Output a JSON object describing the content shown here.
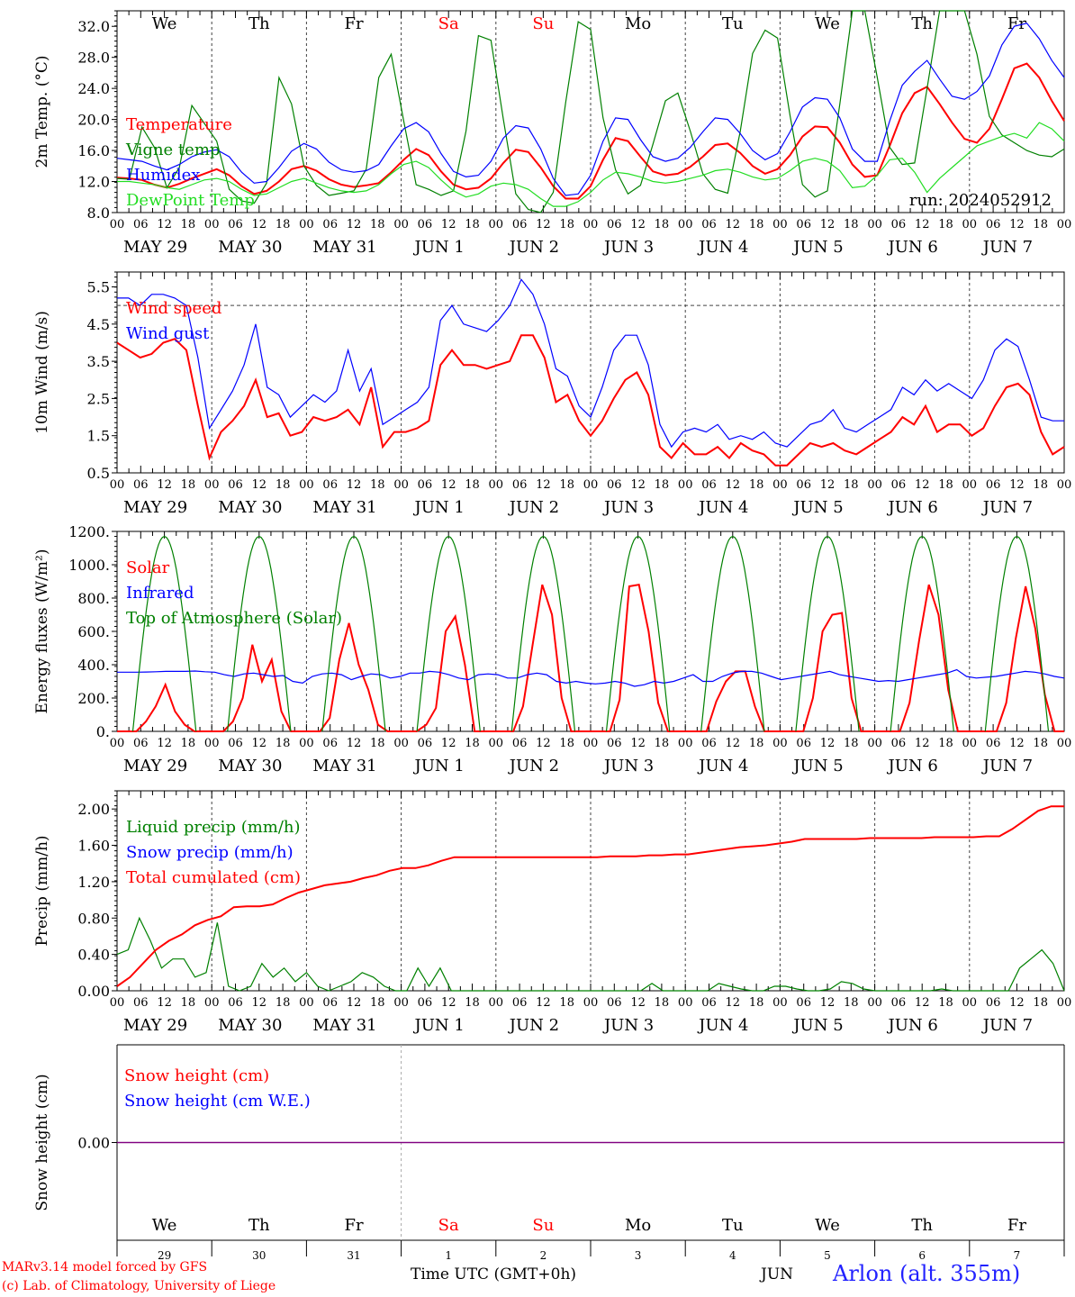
{
  "footer": {
    "model": "MARv3.14 model forced by GFS",
    "credit": "(c) Lab. of Climatology, University of Liege",
    "time_label": "Time UTC (GMT+0h)",
    "month_label": "JUN",
    "station": "Arlon (alt. 355m)"
  },
  "colors": {
    "red": "#ff0000",
    "green": "#008000",
    "lightgreen": "#22dd22",
    "blue": "#0000ff",
    "purple": "#800080",
    "axis": "#000000"
  },
  "axis_common": {
    "hour_ticks": [
      "00",
      "06",
      "12",
      "18"
    ],
    "date_labels": [
      "MAY 29",
      "MAY 30",
      "MAY 31",
      "JUN  1",
      "JUN  2",
      "JUN  3",
      "JUN  4",
      "JUN  5",
      "JUN  6",
      "JUN  7"
    ],
    "day_names": [
      "We",
      "Th",
      "Fr",
      "Sa",
      "Su",
      "Mo",
      "Tu",
      "We",
      "Th",
      "Fr"
    ],
    "weekend_days": [
      3,
      4
    ],
    "bottom_day_numbers": [
      "29",
      "30",
      "31",
      "1",
      "2",
      "3",
      "4",
      "5",
      "6",
      "7"
    ]
  },
  "chart_data": [
    {
      "type": "line",
      "ylabel": "2m Temp. (°C)",
      "ylim": [
        8,
        34
      ],
      "yticks": [
        "8.0",
        "12.0",
        "16.0",
        "20.0",
        "24.0",
        "28.0",
        "32.0"
      ],
      "run_label": "run: 2024052912",
      "x_hours_step": 3,
      "series": [
        {
          "name": "Temperature",
          "color": "red",
          "values": [
            12.5,
            12.4,
            12.2,
            11.6,
            11.2,
            11.7,
            12.4,
            13.0,
            13.6,
            12.8,
            11.4,
            10.4,
            10.8,
            12.0,
            13.6,
            14.0,
            13.4,
            12.3,
            11.6,
            11.3,
            11.5,
            11.8,
            13.2,
            14.8,
            16.2,
            15.4,
            13.3,
            11.6,
            11.0,
            11.2,
            12.4,
            14.4,
            16.1,
            15.8,
            13.8,
            11.4,
            9.8,
            9.8,
            11.4,
            14.8,
            17.6,
            17.2,
            15.2,
            13.3,
            12.8,
            13.0,
            13.9,
            15.2,
            16.7,
            16.9,
            15.7,
            14.0,
            13.0,
            13.6,
            15.4,
            17.8,
            19.1,
            19.0,
            17.0,
            14.2,
            12.6,
            12.8,
            16.6,
            20.8,
            23.4,
            24.2,
            22.0,
            19.6,
            17.5,
            17.0,
            18.8,
            22.6,
            26.6,
            27.2,
            25.4,
            22.4,
            19.8
          ]
        },
        {
          "name": "Vigne temp",
          "color": "green",
          "values": [
            12.4,
            12.3,
            19.0,
            16.4,
            11.2,
            13.8,
            21.8,
            19.5,
            17.2,
            11.0,
            9.5,
            9.2,
            11.8,
            25.4,
            22.0,
            14.0,
            11.5,
            10.2,
            10.5,
            10.8,
            13.6,
            25.4,
            28.4,
            19.8,
            11.6,
            11.0,
            10.2,
            10.8,
            18.5,
            30.8,
            30.2,
            20.0,
            10.4,
            8.4,
            7.8,
            10.6,
            22.2,
            32.6,
            31.6,
            20.2,
            13.5,
            10.4,
            11.5,
            16.8,
            22.4,
            23.4,
            18.5,
            13.0,
            11.0,
            10.5,
            18.4,
            28.5,
            31.5,
            30.5,
            20.5,
            11.6,
            10.0,
            10.8,
            22.0,
            36.0,
            36.0,
            25.4,
            16.4,
            14.2,
            14.4,
            24.0,
            36.0,
            36.0,
            36.0,
            28.4,
            20.4,
            18.0,
            17.0,
            16.0,
            15.4,
            15.2,
            16.2
          ]
        },
        {
          "name": "Humidex",
          "color": "blue",
          "values": [
            15.0,
            14.8,
            14.6,
            14.0,
            13.5,
            14.2,
            15.2,
            15.8,
            16.1,
            15.2,
            13.2,
            11.8,
            12.0,
            13.8,
            15.9,
            16.9,
            16.2,
            14.5,
            13.5,
            13.2,
            13.4,
            14.2,
            16.6,
            18.8,
            19.6,
            18.4,
            15.6,
            13.3,
            12.6,
            12.8,
            14.6,
            17.6,
            19.2,
            18.9,
            16.2,
            12.4,
            10.2,
            10.4,
            12.8,
            17.2,
            20.2,
            20.0,
            17.4,
            15.2,
            14.6,
            15.0,
            16.4,
            18.4,
            20.2,
            20.0,
            18.2,
            16.0,
            14.8,
            15.6,
            18.4,
            21.6,
            22.8,
            22.6,
            20.2,
            16.2,
            14.6,
            14.6,
            19.8,
            24.4,
            26.2,
            27.6,
            25.2,
            23.0,
            22.6,
            23.6,
            25.6,
            29.6,
            32.0,
            32.4,
            30.4,
            27.6,
            25.4
          ]
        },
        {
          "name": "DewPoint Temp",
          "color": "lightgreen",
          "values": [
            12.0,
            12.0,
            11.8,
            11.6,
            11.2,
            11.0,
            11.6,
            12.2,
            12.4,
            12.0,
            11.0,
            10.2,
            10.4,
            11.2,
            12.0,
            12.4,
            11.8,
            11.2,
            10.8,
            10.6,
            10.8,
            11.6,
            13.0,
            14.2,
            14.6,
            13.8,
            12.2,
            10.8,
            10.0,
            10.4,
            11.4,
            11.8,
            11.6,
            11.0,
            9.8,
            8.8,
            8.8,
            9.4,
            10.6,
            12.2,
            13.2,
            13.0,
            12.6,
            12.0,
            11.8,
            12.0,
            12.4,
            12.8,
            13.4,
            13.6,
            13.2,
            12.6,
            12.2,
            12.4,
            13.4,
            14.6,
            15.0,
            14.6,
            13.4,
            11.2,
            11.4,
            12.8,
            14.8,
            15.0,
            13.2,
            10.6,
            12.4,
            13.8,
            15.2,
            16.6,
            17.2,
            17.8,
            18.2,
            17.6,
            19.6,
            18.8,
            17.2
          ]
        }
      ]
    },
    {
      "type": "line",
      "ylabel": "10m Wind (m/s)",
      "ylim": [
        0.5,
        5.9
      ],
      "yticks": [
        "0.5",
        "1.5",
        "2.5",
        "3.5",
        "4.5",
        "5.5"
      ],
      "reference_line": 5.0,
      "x_hours_step": 3,
      "series": [
        {
          "name": "Wind speed",
          "color": "red",
          "values": [
            4.0,
            3.8,
            3.6,
            3.7,
            4.0,
            4.1,
            3.8,
            2.3,
            0.9,
            1.6,
            1.9,
            2.3,
            3.0,
            2.0,
            2.1,
            1.5,
            1.6,
            2.0,
            1.9,
            2.0,
            2.2,
            1.8,
            2.8,
            1.2,
            1.6,
            1.6,
            1.7,
            1.9,
            3.4,
            3.8,
            3.4,
            3.4,
            3.3,
            3.4,
            3.5,
            4.2,
            4.2,
            3.6,
            2.4,
            2.6,
            1.9,
            1.5,
            1.9,
            2.5,
            3.0,
            3.2,
            2.6,
            1.2,
            0.9,
            1.3,
            1.0,
            1.0,
            1.2,
            0.9,
            1.3,
            1.1,
            1.0,
            0.7,
            0.7,
            1.0,
            1.3,
            1.2,
            1.3,
            1.1,
            1.0,
            1.2,
            1.4,
            1.6,
            2.0,
            1.8,
            2.3,
            1.6,
            1.8,
            1.8,
            1.5,
            1.7,
            2.3,
            2.8,
            2.9,
            2.6,
            1.6,
            1.0,
            1.2
          ]
        },
        {
          "name": "Wind gust",
          "color": "blue",
          "values": [
            5.2,
            5.2,
            5.0,
            5.3,
            5.3,
            5.2,
            5.0,
            3.6,
            1.7,
            2.2,
            2.7,
            3.4,
            4.5,
            2.8,
            2.6,
            2.0,
            2.3,
            2.6,
            2.4,
            2.7,
            3.8,
            2.7,
            3.3,
            1.8,
            2.0,
            2.2,
            2.4,
            2.8,
            4.6,
            5.0,
            4.5,
            4.4,
            4.3,
            4.6,
            5.0,
            5.7,
            5.3,
            4.5,
            3.3,
            3.1,
            2.3,
            2.0,
            2.8,
            3.8,
            4.2,
            4.2,
            3.4,
            1.8,
            1.2,
            1.6,
            1.7,
            1.6,
            1.8,
            1.4,
            1.5,
            1.4,
            1.6,
            1.3,
            1.2,
            1.5,
            1.8,
            1.9,
            2.2,
            1.7,
            1.6,
            1.8,
            2.0,
            2.2,
            2.8,
            2.6,
            3.0,
            2.7,
            2.9,
            2.7,
            2.5,
            3.0,
            3.8,
            4.1,
            3.9,
            3.0,
            2.0,
            1.9,
            1.9
          ]
        }
      ]
    },
    {
      "type": "line",
      "ylabel": "Energy fluxes (W/m²)",
      "ylim": [
        0,
        1200
      ],
      "yticks": [
        "0.",
        "200.",
        "400.",
        "600.",
        "800.",
        "1000.",
        "1200."
      ],
      "x_hours_step": 3,
      "series": [
        {
          "name": "Solar",
          "color": "red",
          "values": [
            0,
            0,
            0,
            60,
            150,
            280,
            120,
            40,
            0,
            0,
            0,
            0,
            60,
            200,
            520,
            300,
            430,
            120,
            0,
            0,
            0,
            0,
            80,
            430,
            650,
            400,
            250,
            40,
            0,
            0,
            0,
            0,
            40,
            140,
            600,
            690,
            400,
            0,
            0,
            0,
            0,
            0,
            150,
            520,
            880,
            700,
            200,
            0,
            0,
            0,
            0,
            0,
            190,
            870,
            880,
            600,
            170,
            0,
            0,
            0,
            0,
            0,
            180,
            300,
            360,
            360,
            150,
            0,
            0,
            0,
            0,
            0,
            200,
            600,
            700,
            710,
            200,
            0,
            0,
            0,
            0,
            0,
            170,
            550,
            880,
            700,
            250,
            0,
            0,
            0,
            0,
            0,
            170,
            560,
            870,
            620,
            220,
            0,
            0
          ]
        },
        {
          "name": "Infrared",
          "color": "blue",
          "values": [
            355,
            355,
            355,
            356,
            358,
            360,
            360,
            360,
            362,
            358,
            355,
            340,
            330,
            345,
            350,
            340,
            330,
            335,
            300,
            290,
            330,
            345,
            350,
            340,
            310,
            330,
            345,
            340,
            320,
            330,
            350,
            350,
            360,
            355,
            340,
            320,
            310,
            340,
            345,
            340,
            320,
            320,
            340,
            350,
            340,
            300,
            290,
            300,
            290,
            285,
            290,
            300,
            290,
            270,
            280,
            300,
            290,
            300,
            320,
            340,
            300,
            300,
            330,
            350,
            360,
            360,
            350,
            330,
            310,
            320,
            330,
            340,
            350,
            360,
            340,
            330,
            320,
            310,
            300,
            305,
            300,
            310,
            320,
            330,
            340,
            350,
            370,
            330,
            320,
            325,
            330,
            340,
            350,
            360,
            355,
            345,
            330,
            320
          ]
        },
        {
          "name": "Top of Atmosphere (Solar)",
          "color": "green",
          "values": [
            1170,
            1170,
            1170,
            1170,
            1170,
            1170,
            1170,
            1170,
            1170,
            1170
          ]
        }
      ]
    },
    {
      "type": "line",
      "ylabel": "Precip (mm/h)",
      "ylim": [
        0,
        2.2
      ],
      "yticks": [
        "0.00",
        "0.40",
        "0.80",
        "1.20",
        "1.60",
        "2.00"
      ],
      "x_hours_step": 3,
      "series": [
        {
          "name": "Liquid precip (mm/h)",
          "color": "green",
          "values": [
            0.4,
            0.45,
            0.8,
            0.55,
            0.25,
            0.35,
            0.35,
            0.15,
            0.2,
            0.75,
            0.05,
            0.0,
            0.05,
            0.3,
            0.15,
            0.25,
            0.1,
            0.2,
            0.05,
            0.0,
            0.05,
            0.1,
            0.2,
            0.15,
            0.05,
            0.0,
            0.0,
            0.25,
            0.05,
            0.25,
            0.0,
            0.0,
            0.0,
            0.0,
            0.0,
            0.0,
            0.0,
            0.0,
            0.0,
            0.0,
            0.0,
            0.0,
            0.0,
            0.0,
            0.0,
            0.0,
            0.0,
            0.0,
            0.08,
            0.0,
            0.0,
            0.0,
            0.0,
            0.0,
            0.08,
            0.05,
            0.02,
            0.0,
            0.0,
            0.05,
            0.05,
            0.02,
            0.0,
            0.0,
            0.02,
            0.1,
            0.08,
            0.02,
            0.0,
            0.0,
            0.0,
            0.0,
            0.0,
            0.0,
            0.02,
            0.0,
            0.0,
            0.0,
            0.0,
            0.0,
            0.0,
            0.25,
            0.35,
            0.45,
            0.3,
            0.0
          ]
        },
        {
          "name": "Snow precip (mm/h)",
          "color": "blue",
          "values": []
        },
        {
          "name": "Total cumulated (cm)",
          "color": "red",
          "values": [
            0.05,
            0.15,
            0.3,
            0.45,
            0.55,
            0.62,
            0.72,
            0.78,
            0.82,
            0.92,
            0.93,
            0.93,
            0.95,
            1.02,
            1.08,
            1.12,
            1.16,
            1.18,
            1.2,
            1.24,
            1.27,
            1.32,
            1.35,
            1.35,
            1.38,
            1.43,
            1.47,
            1.47,
            1.47,
            1.47,
            1.47,
            1.47,
            1.47,
            1.47,
            1.47,
            1.47,
            1.47,
            1.47,
            1.48,
            1.48,
            1.48,
            1.49,
            1.49,
            1.5,
            1.5,
            1.52,
            1.54,
            1.56,
            1.58,
            1.59,
            1.6,
            1.62,
            1.64,
            1.67,
            1.67,
            1.67,
            1.67,
            1.67,
            1.68,
            1.68,
            1.68,
            1.68,
            1.68,
            1.69,
            1.69,
            1.69,
            1.69,
            1.7,
            1.7,
            1.78,
            1.88,
            1.98,
            2.03,
            2.03
          ]
        }
      ]
    },
    {
      "type": "line",
      "ylabel": "Snow height (cm)",
      "yticks": [
        "0.00"
      ],
      "series": [
        {
          "name": "Snow height (cm)",
          "color": "red",
          "values": [
            0,
            0
          ]
        },
        {
          "name": "Snow height (cm W.E.)",
          "color": "blue",
          "values": [
            0,
            0
          ]
        }
      ]
    }
  ]
}
